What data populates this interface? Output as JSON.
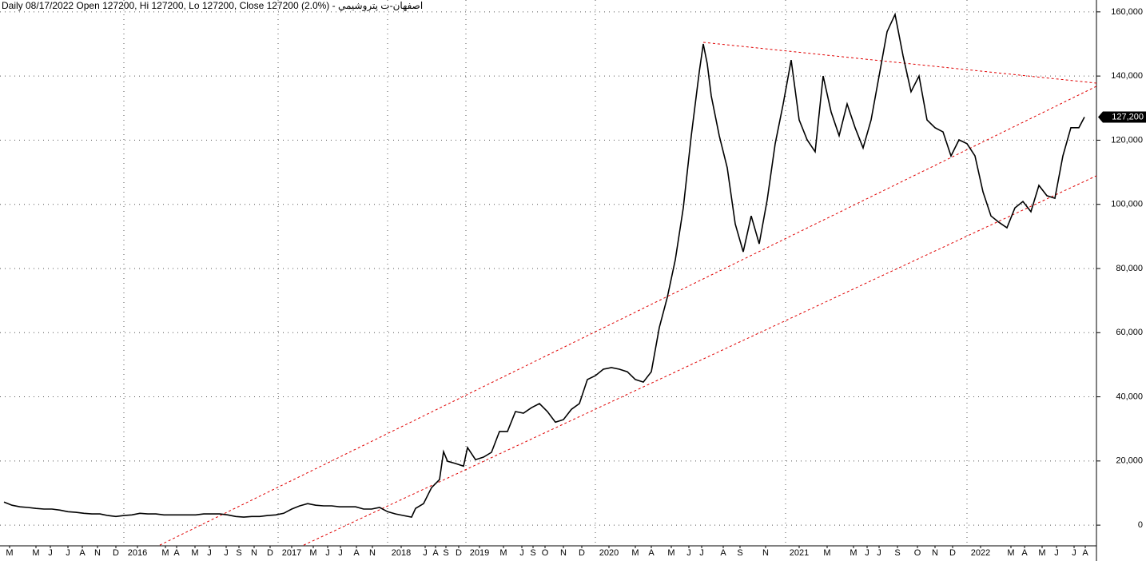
{
  "chart_data": {
    "type": "line",
    "title": "اصفهان-ت پتروشيمي - Daily 08/17/2022 Open 127200, Hi 127200, Lo 127200, Close 127200 (2.0%)",
    "color": "#000000",
    "x": [
      5,
      15,
      25,
      35,
      45,
      55,
      65,
      75,
      85,
      95,
      105,
      115,
      125,
      135,
      145,
      155,
      165,
      175,
      185,
      195,
      205,
      215,
      225,
      235,
      245,
      255,
      265,
      275,
      285,
      295,
      305,
      315,
      325,
      335,
      345,
      355,
      365,
      375,
      385,
      395,
      405,
      415,
      425,
      435,
      445,
      455,
      465,
      475,
      485,
      495,
      505,
      515,
      520,
      530,
      540,
      550,
      555,
      560,
      570,
      580,
      585,
      595,
      605,
      615,
      625,
      635,
      645,
      655,
      665,
      675,
      685,
      695,
      705,
      715,
      725,
      735,
      745,
      755,
      765,
      775,
      785,
      795,
      805,
      815,
      825,
      835,
      845,
      855,
      865,
      875,
      880,
      885,
      890,
      900,
      910,
      920,
      930,
      940,
      950,
      960,
      970,
      980,
      990,
      1000,
      1010,
      1020,
      1030,
      1040,
      1050,
      1060,
      1070,
      1080,
      1090,
      1100,
      1110,
      1120,
      1130,
      1140,
      1150,
      1160,
      1170,
      1180,
      1190,
      1200,
      1210,
      1220,
      1230,
      1240,
      1250,
      1260,
      1270,
      1280,
      1290,
      1300,
      1310,
      1320,
      1330,
      1340,
      1350,
      1357
    ],
    "values": [
      7200,
      6200,
      5700,
      5500,
      5200,
      5000,
      5000,
      4700,
      4200,
      4000,
      3700,
      3500,
      3500,
      3000,
      2700,
      3000,
      3200,
      3700,
      3500,
      3500,
      3200,
      3200,
      3200,
      3200,
      3200,
      3500,
      3500,
      3500,
      3200,
      2700,
      2500,
      2700,
      2700,
      3000,
      3200,
      3700,
      5000,
      6000,
      6700,
      6200,
      6000,
      6000,
      5700,
      5700,
      5700,
      5000,
      5000,
      5500,
      4200,
      3500,
      3000,
      2500,
      5200,
      6700,
      11700,
      14200,
      22900,
      19900,
      19200,
      18400,
      24200,
      20400,
      21200,
      22700,
      29200,
      29200,
      35400,
      34900,
      36600,
      37900,
      35400,
      32100,
      32900,
      36100,
      37900,
      45400,
      46600,
      48600,
      49100,
      48600,
      47800,
      45400,
      44600,
      47800,
      61600,
      71000,
      82700,
      98900,
      121400,
      141300,
      150000,
      143800,
      133800,
      121400,
      111400,
      93900,
      85200,
      96400,
      87700,
      101400,
      118900,
      131300,
      145000,
      126300,
      120100,
      116400,
      140000,
      128800,
      121400,
      131300,
      123900,
      117600,
      126300,
      140000,
      153800,
      159200,
      146300,
      135100,
      140000,
      126300,
      123900,
      122600,
      115100,
      120100,
      118900,
      115100,
      103900,
      96400,
      94400,
      92700,
      98900,
      100900,
      97700,
      105900,
      102700,
      101900,
      115100,
      123900,
      123900,
      127200
    ],
    "xlim": [
      0,
      1372
    ],
    "ylim": [
      -5700,
      163700
    ],
    "yticks": [
      0,
      {
        "value": 20000,
        "label": "20,000"
      },
      {
        "value": 40000,
        "label": "40,000"
      },
      {
        "value": 60000,
        "label": "60,000"
      },
      {
        "value": 80000,
        "label": "80,000"
      },
      {
        "value": 100000,
        "label": "100,000"
      },
      {
        "value": 120000,
        "label": "120,000"
      },
      {
        "value": 140000,
        "label": "140,000"
      },
      {
        "value": 160000,
        "label": "160,000"
      }
    ],
    "xticks": [
      {
        "value": 12,
        "label": "M"
      },
      {
        "value": 45,
        "label": "M"
      },
      {
        "value": 63,
        "label": "J"
      },
      {
        "value": 85,
        "label": "J"
      },
      {
        "value": 103,
        "label": "A"
      },
      {
        "value": 122,
        "label": "N"
      },
      {
        "value": 145,
        "label": "D"
      },
      {
        "value": 172,
        "label": "2016"
      },
      {
        "value": 207,
        "label": "M"
      },
      {
        "value": 221,
        "label": "A"
      },
      {
        "value": 244,
        "label": "M"
      },
      {
        "value": 262,
        "label": "J"
      },
      {
        "value": 283,
        "label": "J"
      },
      {
        "value": 299,
        "label": "S"
      },
      {
        "value": 318,
        "label": "N"
      },
      {
        "value": 338,
        "label": "D"
      },
      {
        "value": 365,
        "label": "2017"
      },
      {
        "value": 392,
        "label": "M"
      },
      {
        "value": 410,
        "label": "J"
      },
      {
        "value": 426,
        "label": "J"
      },
      {
        "value": 446,
        "label": "A"
      },
      {
        "value": 466,
        "label": "N"
      },
      {
        "value": 502,
        "label": "2018"
      },
      {
        "value": 532,
        "label": "J"
      },
      {
        "value": 545,
        "label": "A"
      },
      {
        "value": 558,
        "label": "S"
      },
      {
        "value": 574,
        "label": "D"
      },
      {
        "value": 600,
        "label": "2019"
      },
      {
        "value": 630,
        "label": "M"
      },
      {
        "value": 653,
        "label": "J"
      },
      {
        "value": 667,
        "label": "S"
      },
      {
        "value": 682,
        "label": "O"
      },
      {
        "value": 705,
        "label": "N"
      },
      {
        "value": 728,
        "label": "D"
      },
      {
        "value": 762,
        "label": "2020"
      },
      {
        "value": 795,
        "label": "M"
      },
      {
        "value": 815,
        "label": "A"
      },
      {
        "value": 840,
        "label": "M"
      },
      {
        "value": 862,
        "label": "J"
      },
      {
        "value": 878,
        "label": "J"
      },
      {
        "value": 905,
        "label": "A"
      },
      {
        "value": 926,
        "label": "S"
      },
      {
        "value": 958,
        "label": "N"
      },
      {
        "value": 1000,
        "label": "2021"
      },
      {
        "value": 1035,
        "label": "M"
      },
      {
        "value": 1068,
        "label": "M"
      },
      {
        "value": 1085,
        "label": "J"
      },
      {
        "value": 1100,
        "label": "J"
      },
      {
        "value": 1123,
        "label": "S"
      },
      {
        "value": 1148,
        "label": "O"
      },
      {
        "value": 1170,
        "label": "N"
      },
      {
        "value": 1192,
        "label": "D"
      },
      {
        "value": 1227,
        "label": "2022"
      },
      {
        "value": 1265,
        "label": "M"
      },
      {
        "value": 1282,
        "label": "A"
      },
      {
        "value": 1304,
        "label": "M"
      },
      {
        "value": 1322,
        "label": "J"
      },
      {
        "value": 1344,
        "label": "J"
      },
      {
        "value": 1358,
        "label": "A"
      }
    ],
    "last_value": {
      "value": 127200,
      "label": "127,200"
    },
    "trendlines": [
      {
        "x": [
          200,
          1372
        ],
        "y": [
          -6230,
          136800
        ],
        "color": "#e00000"
      },
      {
        "x": [
          380,
          1372
        ],
        "y": [
          -6230,
          108900
        ],
        "color": "#e00000"
      },
      {
        "x": [
          880,
          1372
        ],
        "y": [
          150500,
          137800
        ],
        "color": "#e00000"
      }
    ],
    "grid": true
  }
}
